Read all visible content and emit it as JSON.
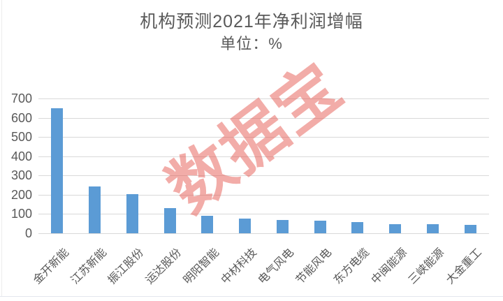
{
  "watermark": {
    "text": "数据宝",
    "color": "#e5534b"
  },
  "chart_data": {
    "type": "bar",
    "title": "机构预测2021年净利润增幅",
    "subtitle": "单位：%",
    "unit": "%",
    "categories": [
      "金开新能",
      "江苏新能",
      "振江股份",
      "运达股份",
      "明阳智能",
      "中材科技",
      "电气风电",
      "节能风电",
      "东方电缆",
      "中闽能源",
      "三峡能源",
      "大金重工"
    ],
    "values": [
      650,
      242,
      203,
      130,
      90,
      76,
      68,
      67,
      57,
      48,
      46,
      45
    ],
    "ylim": [
      0,
      700
    ],
    "yticks": [
      0,
      100,
      200,
      300,
      400,
      500,
      600,
      700
    ],
    "grid": true,
    "legend": false,
    "bar_color": "#5b9bd5",
    "axis_label_color": "#595959",
    "gridline_color": "#d9d9d9",
    "title_color": "#595959"
  }
}
